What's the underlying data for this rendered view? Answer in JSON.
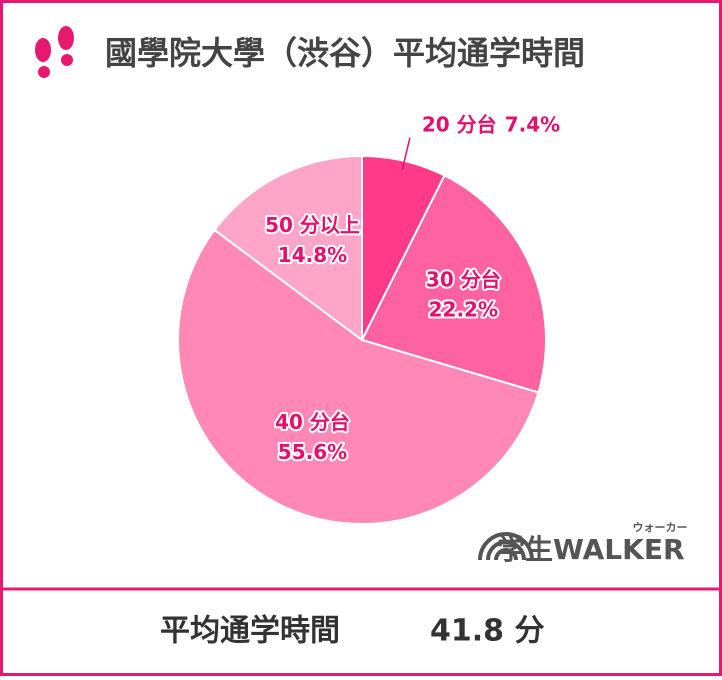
{
  "chart_data": {
    "type": "pie",
    "title": "國學院大學（渋谷）平均通学時間",
    "categories": [
      "20 分台",
      "30 分台",
      "40 分台",
      "50 分以上"
    ],
    "values": [
      7.4,
      22.2,
      55.6,
      14.8
    ],
    "value_labels": [
      "7.4%",
      "22.2%",
      "55.6%",
      "14.8%"
    ],
    "colors": [
      "#ff3a88",
      "#ff62a0",
      "#ff88b6",
      "#ffa6c8"
    ],
    "footer": {
      "label": "平均通学時間",
      "value": "41.8 分"
    },
    "logo": {
      "main": "学生WALKER",
      "ruby": "ウォーカー"
    }
  }
}
